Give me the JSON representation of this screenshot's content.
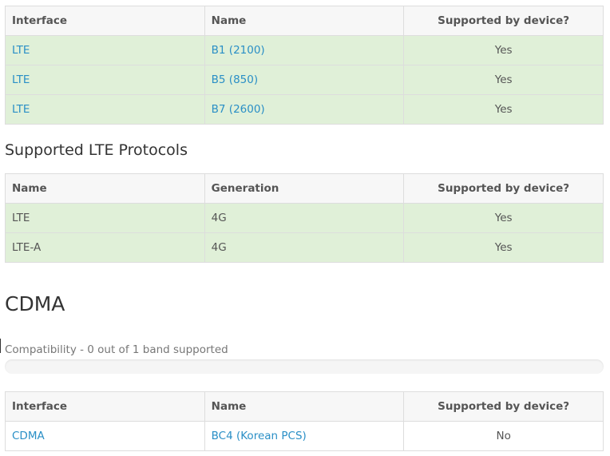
{
  "bands_table": {
    "headers": [
      "Interface",
      "Name",
      "Supported by device?"
    ],
    "rows": [
      {
        "interface": "LTE",
        "name": "B1 (2100)",
        "supported": "Yes"
      },
      {
        "interface": "LTE",
        "name": "B5 (850)",
        "supported": "Yes"
      },
      {
        "interface": "LTE",
        "name": "B7 (2600)",
        "supported": "Yes"
      }
    ]
  },
  "lte_protocols": {
    "heading": "Supported LTE Protocols",
    "headers": [
      "Name",
      "Generation",
      "Supported by device?"
    ],
    "rows": [
      {
        "name": "LTE",
        "generation": "4G",
        "supported": "Yes"
      },
      {
        "name": "LTE-A",
        "generation": "4G",
        "supported": "Yes"
      }
    ]
  },
  "cdma": {
    "heading": "CDMA",
    "compatibility": "Compatibility - 0 out of 1 band supported",
    "progress_fraction": 0,
    "headers": [
      "Interface",
      "Name",
      "Supported by device?"
    ],
    "rows": [
      {
        "interface": "CDMA",
        "name": "BC4 (Korean PCS)",
        "supported": "No"
      }
    ]
  },
  "colors": {
    "supported_row": "#e0f0d8",
    "link": "#2a8fc6",
    "header_bg": "#f7f7f7",
    "border": "#dddddd"
  }
}
